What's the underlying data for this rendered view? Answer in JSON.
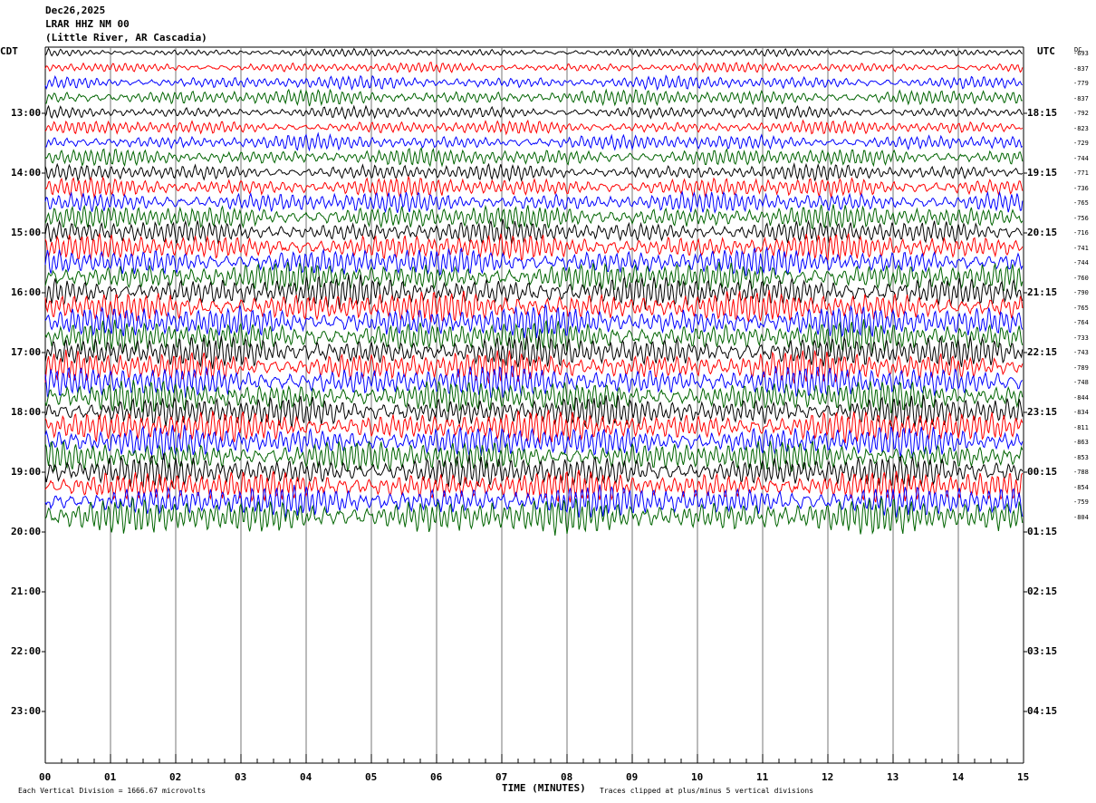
{
  "header": {
    "date": "Dec26,2025",
    "station": "LRAR HHZ NM 00",
    "location": "(Little River, AR Cascadia)"
  },
  "left_tz": "CDT",
  "right_tz": "UTC",
  "dc_label": "DC",
  "chart_data": {
    "type": "line",
    "title": "LRAR HHZ NM 00",
    "xlabel": "TIME (MINUTES)",
    "x_ticks": [
      "00",
      "01",
      "02",
      "03",
      "04",
      "05",
      "06",
      "07",
      "08",
      "09",
      "10",
      "11",
      "12",
      "13",
      "14",
      "15"
    ],
    "xlim": [
      0,
      15
    ],
    "left_hour_labels": [
      "13:00",
      "14:00",
      "15:00",
      "16:00",
      "17:00",
      "18:00",
      "19:00",
      "20:00",
      "21:00",
      "22:00",
      "23:00"
    ],
    "right_hour_labels": [
      "18:15",
      "19:15",
      "20:15",
      "21:15",
      "22:15",
      "23:15",
      "00:15",
      "01:15",
      "02:15",
      "03:15",
      "04:15"
    ],
    "trace_colors": [
      "#000000",
      "#ff0000",
      "#0000ff",
      "#006400"
    ],
    "dc_offsets": [
      -693,
      -837,
      -779,
      -837,
      -792,
      -823,
      -729,
      -744,
      -771,
      -736,
      -765,
      -756,
      -716,
      -741,
      -744,
      -760,
      -790,
      -765,
      -764,
      -733,
      -743,
      -789,
      -748,
      -844,
      -834,
      -811,
      -863,
      -853,
      -788,
      -854,
      -759,
      -804
    ],
    "trace_amplitudes": [
      0.25,
      0.32,
      0.42,
      0.5,
      0.38,
      0.42,
      0.48,
      0.55,
      0.5,
      0.62,
      0.66,
      0.75,
      0.72,
      0.82,
      0.88,
      0.95,
      1.0,
      1.0,
      1.0,
      1.0,
      1.0,
      1.0,
      1.0,
      1.0,
      1.0,
      1.0,
      1.0,
      1.0,
      1.0,
      1.0,
      1.0,
      1.15
    ],
    "rows_per_hour": 4,
    "minutes_per_row": 15
  },
  "footer": {
    "scale_note": "Each Vertical Division = 1666.67 microvolts",
    "clip_note": "Traces clipped at plus/minus 5 vertical divisions"
  }
}
